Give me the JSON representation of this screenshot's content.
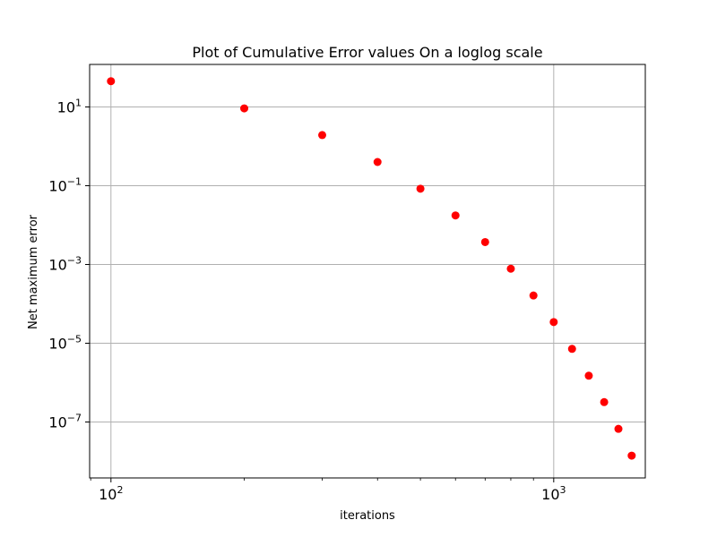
{
  "chart_data": {
    "type": "scatter",
    "title": "Plot of Cumulative Error values On a loglog scale",
    "xlabel": "iterations",
    "ylabel": "Net  maximum error",
    "xscale": "log",
    "yscale": "log",
    "xlim": [
      89.5,
      1610
    ],
    "ylim": [
      3.8e-09,
      120
    ],
    "grid": true,
    "legend": "none",
    "marker_color": "#ff0000",
    "x_ticks": [
      {
        "value": 100,
        "base": "10",
        "exp": "2"
      },
      {
        "value": 1000,
        "base": "10",
        "exp": "3"
      }
    ],
    "y_ticks": [
      {
        "value": 10,
        "base": "10",
        "exp": "1"
      },
      {
        "value": 0.1,
        "base": "10",
        "exp": "−1"
      },
      {
        "value": 0.001,
        "base": "10",
        "exp": "−3"
      },
      {
        "value": 1e-05,
        "base": "10",
        "exp": "−5"
      },
      {
        "value": 1e-07,
        "base": "10",
        "exp": "−7"
      }
    ],
    "series": [
      {
        "x": [
          100,
          200,
          300,
          400,
          500,
          600,
          700,
          800,
          900,
          1000,
          1100,
          1200,
          1300,
          1400,
          1500
        ],
        "y": [
          45,
          9.2,
          1.93,
          0.4,
          0.084,
          0.0176,
          0.0037,
          0.00078,
          0.000163,
          3.45e-05,
          7.2e-06,
          1.5e-06,
          3.2e-07,
          6.7e-08,
          1.4e-08
        ]
      }
    ]
  }
}
